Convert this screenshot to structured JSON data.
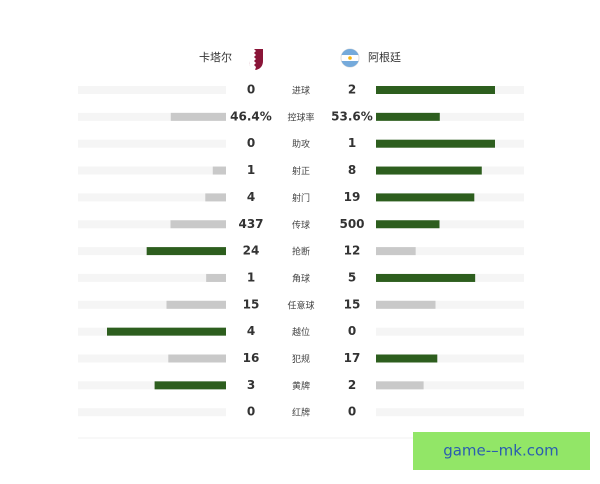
{
  "header": {
    "home": "卡塔尔",
    "away": "阿根廷"
  },
  "rows": [
    {
      "label": "进球",
      "left": 0,
      "right": 2
    },
    {
      "label": "控球率",
      "left": 46.4,
      "right": 53.6,
      "left_label": "46.4%",
      "right_label": "53.6%"
    },
    {
      "label": "助攻",
      "left": 0,
      "right": 1
    },
    {
      "label": "射正",
      "left": 1,
      "right": 8
    },
    {
      "label": "射门",
      "left": 4,
      "right": 19
    },
    {
      "label": "传球",
      "left": 437,
      "right": 500
    },
    {
      "label": "抢断",
      "left": 24,
      "right": 12
    },
    {
      "label": "角球",
      "left": 1,
      "right": 5
    },
    {
      "label": "任意球",
      "left": 15,
      "right": 15
    },
    {
      "label": "越位",
      "left": 4,
      "right": 0
    },
    {
      "label": "犯规",
      "left": 16,
      "right": 17
    },
    {
      "label": "黄牌",
      "left": 3,
      "right": 2
    },
    {
      "label": "红牌",
      "left": 0,
      "right": 0
    }
  ],
  "watermark": "game-–mk.com"
}
